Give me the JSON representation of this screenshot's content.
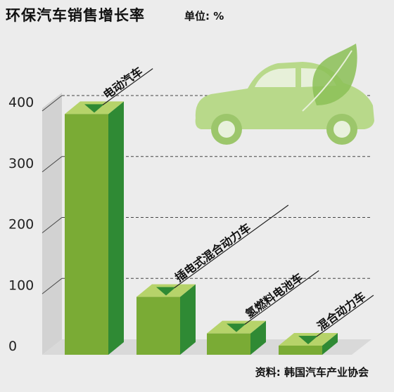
{
  "header": {
    "title": "环保汽车销售增长率",
    "unit": "单位: %"
  },
  "footer": {
    "source": "资料: 韩国汽车产业协会"
  },
  "colors": {
    "bar_front": "#7aab35",
    "bar_side": "#2f8a34",
    "bar_top": "#b6d36a",
    "marker": "#2f8a34",
    "car": "#b8d98a"
  },
  "chart_data": {
    "type": "bar",
    "categories": [
      "电动汽车",
      "插电式混合动力车",
      "氢燃料电池车",
      "混合动力车"
    ],
    "values": [
      395,
      95,
      35,
      15
    ],
    "ylim": [
      0,
      400
    ],
    "yticks": [
      "0",
      "100",
      "200",
      "300",
      "400"
    ],
    "grid": true
  }
}
